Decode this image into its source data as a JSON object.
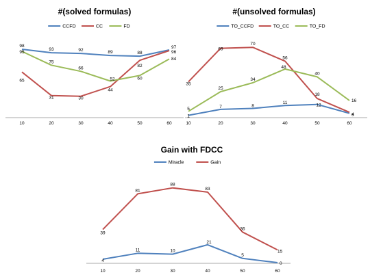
{
  "colors": {
    "blue": "#4f81bd",
    "red": "#c0504d",
    "green": "#9bbb59",
    "axis": "#8c8c8c"
  },
  "chart_data": [
    {
      "type": "line",
      "title": "#(solved formulas)",
      "legend_position": "top",
      "x": [
        10,
        20,
        30,
        40,
        50,
        60
      ],
      "ylim": [
        0,
        100
      ],
      "grid": false,
      "series": [
        {
          "name": "CCFD",
          "color": "#4f81bd",
          "values": [
            98,
            93,
            92,
            89,
            88,
            97
          ],
          "labels": [
            "98",
            "93",
            "92",
            "89",
            "88",
            "97"
          ]
        },
        {
          "name": "CC",
          "color": "#c0504d",
          "values": [
            65,
            31,
            30,
            44,
            82,
            96
          ],
          "labels": [
            "65",
            "31",
            "30",
            "44",
            "82",
            "96"
          ]
        },
        {
          "name": "FD",
          "color": "#9bbb59",
          "values": [
            95,
            75,
            66,
            52,
            60,
            84
          ],
          "labels": [
            "95",
            "75",
            "66",
            "52",
            "60",
            "84"
          ]
        }
      ]
    },
    {
      "type": "line",
      "title": "#(unsolved formulas)",
      "legend_position": "top",
      "x": [
        10,
        20,
        30,
        40,
        50,
        60
      ],
      "ylim": [
        0,
        75
      ],
      "grid": false,
      "series": [
        {
          "name": "TO_CCFD",
          "color": "#4f81bd",
          "values": [
            1,
            7,
            8,
            11,
            12,
            3
          ],
          "labels": [
            "1",
            "7",
            "8",
            "11",
            "12",
            "3"
          ]
        },
        {
          "name": "TO_CC",
          "color": "#c0504d",
          "values": [
            35,
            69,
            70,
            56,
            18,
            4
          ],
          "labels": [
            "35",
            "69",
            "70",
            "56",
            "18",
            "4"
          ]
        },
        {
          "name": "TO_FD",
          "color": "#9bbb59",
          "values": [
            5,
            25,
            34,
            48,
            40,
            16
          ],
          "labels": [
            "5",
            "25",
            "34",
            "48",
            "40",
            "16"
          ]
        }
      ]
    },
    {
      "type": "line",
      "title": "Gain with FDCC",
      "legend_position": "top",
      "x": [
        10,
        20,
        30,
        40,
        50,
        60
      ],
      "ylim": [
        0,
        95
      ],
      "grid": false,
      "series": [
        {
          "name": "Miracle",
          "color": "#4f81bd",
          "values": [
            4,
            11,
            10,
            21,
            5,
            0
          ],
          "labels": [
            "4",
            "11",
            "10",
            "21",
            "5",
            "0"
          ]
        },
        {
          "name": "Gain",
          "color": "#c0504d",
          "values": [
            39,
            81,
            88,
            83,
            36,
            15
          ],
          "labels": [
            "39",
            "81",
            "88",
            "83",
            "36",
            "15"
          ]
        }
      ]
    }
  ]
}
